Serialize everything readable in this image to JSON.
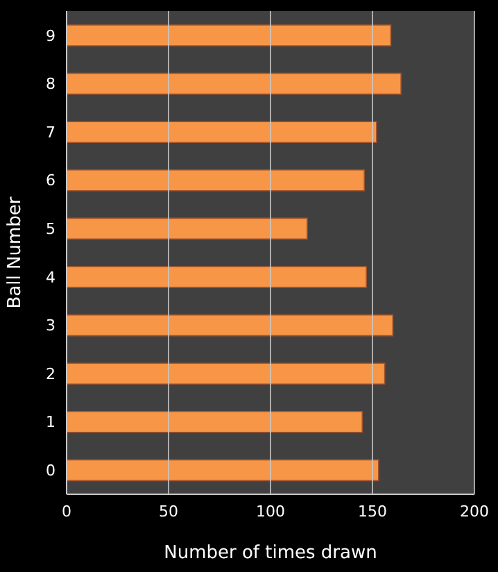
{
  "chart_data": {
    "type": "bar",
    "orientation": "horizontal",
    "xlabel": "Number  of times drawn",
    "ylabel": "Ball Number",
    "categories": [
      "9",
      "8",
      "7",
      "6",
      "5",
      "4",
      "3",
      "2",
      "1",
      "0"
    ],
    "values": [
      159,
      164,
      152,
      146,
      118,
      147,
      160,
      156,
      145,
      153
    ],
    "color": "#f79646",
    "xlim": [
      0,
      200
    ],
    "xticks": [
      0,
      50,
      100,
      150,
      200
    ],
    "grid": "x"
  }
}
